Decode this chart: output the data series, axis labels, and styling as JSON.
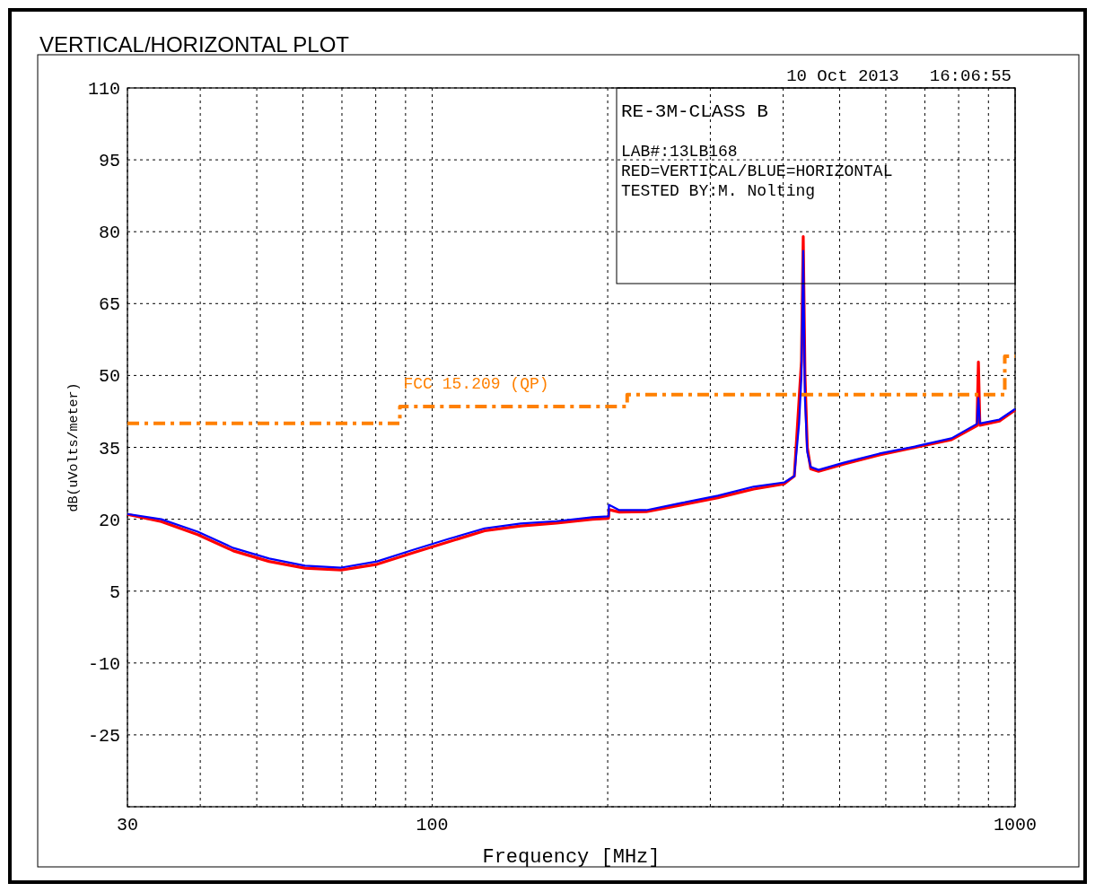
{
  "chart_data": {
    "type": "line",
    "title": "VERTICAL/HORIZONTAL PLOT",
    "xlabel": "Frequency [MHz]",
    "ylabel": "dB(uVolts/meter)",
    "log": "x",
    "xlim": [
      30,
      1000
    ],
    "xticks": [
      30,
      {
        "value": 40,
        "label": null
      },
      {
        "value": 50,
        "label": null
      },
      {
        "value": 60,
        "label": null
      },
      {
        "value": 70,
        "label": null
      },
      {
        "value": 80,
        "label": null
      },
      {
        "value": 90,
        "label": null
      },
      100,
      {
        "value": 200,
        "label": null
      },
      {
        "value": 300,
        "label": null
      },
      {
        "value": 400,
        "label": null
      },
      {
        "value": 500,
        "label": null
      },
      {
        "value": 600,
        "label": null
      },
      {
        "value": 700,
        "label": null
      },
      {
        "value": 800,
        "label": null
      },
      {
        "value": 900,
        "label": null
      },
      1000
    ],
    "ylim": [
      -40,
      110
    ],
    "yticks": [
      {
        "value": -40,
        "label": null
      },
      -25,
      -10,
      5,
      20,
      35,
      50,
      65,
      80,
      95,
      110
    ],
    "grid": true,
    "annotations": [
      "10 Oct 2013   16:06:55",
      "RE-3M-CLASS B",
      "LAB#:13LB168",
      "RED=VERTICAL/BLUE=HORIZONTAL",
      "TESTED BY:M. Nolting"
    ],
    "series": [
      {
        "color": "#ff0000",
        "x": [
          30,
          34.3,
          39.6,
          45.6,
          52.5,
          60.5,
          69.8,
          80.4,
          92.7,
          106.7,
          123,
          141.8,
          163.4,
          188.3,
          200.7,
          201,
          209.4,
          233,
          268,
          309,
          356,
          402,
          418,
          426,
          430,
          433,
          436,
          440,
          446,
          460,
          508,
          585,
          675,
          778,
          860,
          865,
          870,
          940,
          1000
        ],
        "values": [
          21,
          19.5,
          16.8,
          13.4,
          11.2,
          9.8,
          9.4,
          10.6,
          13,
          15.3,
          17.6,
          18.6,
          19.2,
          20,
          20.2,
          22,
          21.5,
          21.6,
          23,
          24.5,
          26.3,
          27.4,
          29,
          45,
          53,
          79,
          50,
          35,
          30.5,
          30,
          31.5,
          33.4,
          35,
          36.6,
          39.5,
          52.8,
          39.6,
          40.5,
          42.8
        ]
      },
      {
        "color": "#0000ff",
        "x": [
          30,
          34.3,
          39.6,
          45.6,
          52.5,
          60.5,
          69.8,
          80.4,
          92.7,
          106.7,
          123,
          141.8,
          163.4,
          188.3,
          200.7,
          201,
          209.4,
          233,
          268,
          309,
          356,
          402,
          418,
          426,
          430,
          433,
          436,
          440,
          446,
          460,
          508,
          585,
          675,
          778,
          860,
          865,
          870,
          940,
          1000
        ],
        "values": [
          21.1,
          20,
          17.4,
          14,
          11.8,
          10.3,
          9.9,
          11.2,
          13.6,
          15.9,
          18.1,
          19.1,
          19.6,
          20.4,
          20.6,
          23,
          21.9,
          21.9,
          23.4,
          24.9,
          26.8,
          27.7,
          29,
          40,
          50,
          76,
          45,
          34,
          30.9,
          30.3,
          31.8,
          33.7,
          35.2,
          36.9,
          39.9,
          45.3,
          40,
          40.8,
          43
        ]
      },
      {
        "name": "FCC 15.209 (QP)",
        "color": "#ff8000",
        "line_style": "dashed",
        "x": [
          30,
          88,
          88,
          216,
          216,
          960,
          960,
          1000
        ],
        "values": [
          40,
          40,
          43.5,
          43.5,
          46,
          46,
          54,
          54
        ]
      }
    ]
  }
}
